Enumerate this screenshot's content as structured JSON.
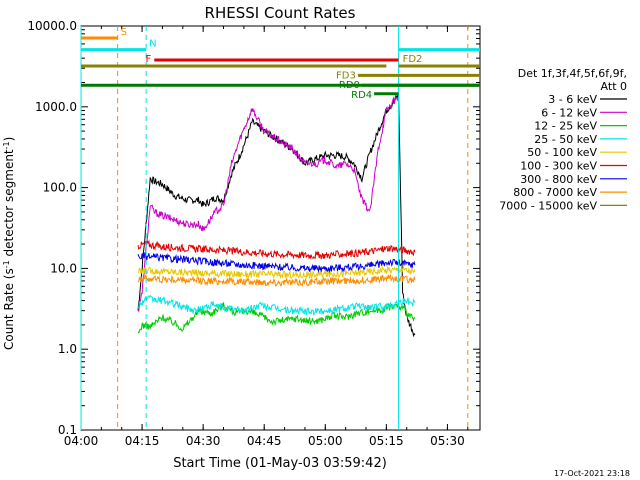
{
  "chart_data": {
    "type": "line",
    "title": "RHESSI Count Rates",
    "xlabel": "Start Time (01-May-03 03:59:42)",
    "ylabel_main": "Count Rate (s",
    "ylabel_sup1": "-1",
    "ylabel_mid": " detector segment",
    "ylabel_sup2": "-1",
    "ylabel_end": ")",
    "y_scale": "log",
    "ylim": [
      0.1,
      10000
    ],
    "xlim": [
      "04:00",
      "05:38"
    ],
    "x_ticks": [
      "04:00",
      "04:15",
      "04:30",
      "04:45",
      "05:00",
      "05:15",
      "05:30"
    ],
    "y_ticks": [
      "0.1",
      "1.0",
      "10.0",
      "100.0",
      "1000.0",
      "10000.0"
    ],
    "legend_header": [
      "Det 1f,3f,4f,5f,6f,9f,",
      "Att 0"
    ],
    "legend_placement": "right",
    "footer_date": "17-Oct-2021 23:18",
    "series": [
      {
        "name": "3 - 6 keV",
        "color": "#000000",
        "x": [
          "04:14",
          "04:15",
          "04:17",
          "04:18",
          "04:20",
          "04:23",
          "04:26",
          "04:29",
          "04:30",
          "04:33",
          "04:35",
          "04:37",
          "04:39",
          "04:41",
          "04:42",
          "04:45",
          "04:48",
          "04:52",
          "04:55",
          "04:58",
          "05:00",
          "05:03",
          "05:05",
          "05:07",
          "05:09",
          "05:11",
          "05:13",
          "05:15",
          "05:17",
          "05:18",
          "05:19",
          "05:20",
          "05:22"
        ],
        "values": [
          3,
          10,
          130,
          120,
          110,
          80,
          70,
          70,
          60,
          75,
          70,
          150,
          250,
          450,
          650,
          500,
          400,
          300,
          200,
          230,
          250,
          250,
          240,
          200,
          130,
          270,
          500,
          900,
          1200,
          1400,
          5,
          2.5,
          1.5
        ]
      },
      {
        "name": "6 - 12 keV",
        "color": "#cc00cc",
        "x": [
          "04:14",
          "04:15",
          "04:17",
          "04:18",
          "04:20",
          "04:23",
          "04:26",
          "04:29",
          "04:30",
          "04:33",
          "04:35",
          "04:37",
          "04:39",
          "04:41",
          "04:42",
          "04:45",
          "04:48",
          "04:52",
          "04:55",
          "04:58",
          "05:00",
          "05:03",
          "05:05",
          "05:07",
          "05:09",
          "05:11",
          "05:13",
          "05:15",
          "05:17",
          "05:18"
        ],
        "values": [
          3,
          5,
          60,
          50,
          45,
          40,
          35,
          35,
          30,
          50,
          60,
          200,
          400,
          700,
          950,
          500,
          400,
          300,
          200,
          200,
          220,
          180,
          200,
          170,
          70,
          50,
          300,
          900,
          1200,
          1300
        ]
      },
      {
        "name": "12 - 25 keV",
        "color": "#00cc00",
        "x": [
          "04:14",
          "04:15",
          "04:17",
          "04:20",
          "04:23",
          "04:25",
          "04:29",
          "04:32",
          "04:35",
          "04:38",
          "04:41",
          "04:44",
          "04:47",
          "04:50",
          "04:53",
          "04:56",
          "04:59",
          "05:02",
          "05:05",
          "05:08",
          "05:11",
          "05:14",
          "05:17",
          "05:19",
          "05:20",
          "05:21",
          "05:22"
        ],
        "values": [
          1.5,
          2,
          1.9,
          2.5,
          2.1,
          1.8,
          3,
          2.8,
          3.5,
          2.8,
          3.0,
          2.6,
          2.2,
          2.3,
          2.4,
          2.2,
          2.3,
          2.6,
          2.5,
          2.8,
          3.0,
          3.1,
          3.5,
          3.2,
          2.8,
          2.5,
          2.4
        ]
      },
      {
        "name": "25 - 50 keV",
        "color": "#00e5e5",
        "x": [
          "04:14",
          "04:16",
          "04:20",
          "04:24",
          "04:28",
          "04:32",
          "04:36",
          "04:40",
          "04:44",
          "04:48",
          "04:52",
          "04:56",
          "05:00",
          "05:04",
          "05:08",
          "05:12",
          "05:16",
          "05:19",
          "05:22"
        ],
        "values": [
          3.5,
          4.2,
          4.0,
          3.5,
          3.0,
          3.5,
          3.2,
          3.0,
          3.5,
          3.2,
          3.0,
          2.9,
          3.0,
          3.2,
          3.4,
          3.3,
          3.5,
          4.0,
          3.8
        ]
      },
      {
        "name": "50 - 100 keV",
        "color": "#e6c800",
        "x": [
          "04:14",
          "04:16",
          "04:20",
          "04:24",
          "04:28",
          "04:32",
          "04:36",
          "04:40",
          "04:44",
          "04:48",
          "04:52",
          "04:56",
          "05:00",
          "05:04",
          "05:08",
          "05:12",
          "05:16",
          "05:19",
          "05:22"
        ],
        "values": [
          9,
          9.5,
          9.2,
          9.0,
          8.8,
          8.7,
          8.6,
          8.5,
          8.5,
          8.4,
          8.3,
          8.3,
          8.5,
          8.6,
          8.9,
          9.2,
          9.6,
          9.8,
          9.0
        ]
      },
      {
        "name": "100 - 300 keV",
        "color": "#e60000",
        "x": [
          "04:14",
          "04:16",
          "04:20",
          "04:24",
          "04:28",
          "04:32",
          "04:36",
          "04:40",
          "04:44",
          "04:48",
          "04:52",
          "04:56",
          "05:00",
          "05:04",
          "05:08",
          "05:12",
          "05:16",
          "05:19",
          "05:22"
        ],
        "values": [
          19,
          20,
          18.5,
          18,
          17.5,
          17,
          16.5,
          16,
          15.5,
          15,
          14.8,
          14.5,
          14.5,
          15,
          15.5,
          16.5,
          18,
          17,
          16
        ]
      },
      {
        "name": "300 - 800 keV",
        "color": "#0000e6",
        "x": [
          "04:14",
          "04:16",
          "04:20",
          "04:24",
          "04:28",
          "04:32",
          "04:36",
          "04:40",
          "04:44",
          "04:48",
          "04:52",
          "04:56",
          "05:00",
          "05:04",
          "05:08",
          "05:12",
          "05:16",
          "05:19",
          "05:22"
        ],
        "values": [
          14,
          14,
          13.5,
          13,
          12.5,
          12,
          11.5,
          11,
          10.8,
          10.5,
          10.2,
          10,
          10,
          10.3,
          10.5,
          11,
          12,
          11.5,
          11
        ]
      },
      {
        "name": "800 - 7000 keV",
        "color": "#ff8c00",
        "x": [
          "04:14",
          "04:16",
          "04:20",
          "04:24",
          "04:28",
          "04:32",
          "04:36",
          "04:40",
          "04:44",
          "04:48",
          "04:52",
          "04:56",
          "05:00",
          "05:04",
          "05:08",
          "05:12",
          "05:16",
          "05:19",
          "05:22"
        ],
        "values": [
          7.5,
          7.5,
          7.3,
          7.2,
          7.0,
          7.0,
          6.9,
          6.8,
          6.8,
          6.7,
          6.7,
          6.8,
          6.9,
          7.0,
          7.1,
          7.3,
          7.6,
          7.4,
          7.2
        ]
      },
      {
        "name": "7000 - 15000 keV",
        "color": "#8b8000",
        "x": [],
        "values": []
      }
    ],
    "annotations": {
      "vlines": [
        {
          "x": "04:00",
          "color": "#00e5e5",
          "style": "solid"
        },
        {
          "x": "04:09",
          "color": "#ff8c00",
          "style": "dashed"
        },
        {
          "x": "04:16",
          "color": "#00e5e5",
          "style": "dashed"
        },
        {
          "x": "05:18",
          "color": "#00e5e5",
          "style": "solid"
        },
        {
          "x": "05:35",
          "color": "#ff8c00",
          "style": "dashed"
        }
      ],
      "hbars": [
        {
          "label": "S",
          "x0": "04:00",
          "x1": "04:09",
          "y": 7100,
          "color": "#ff8c00"
        },
        {
          "label": "N",
          "x0": "04:00",
          "x1": "04:16",
          "y": 5100,
          "color": "#00e5e5"
        },
        {
          "label": "",
          "x0": "05:18",
          "x1": "05:38",
          "y": 5100,
          "color": "#00e5e5"
        },
        {
          "label": "F",
          "x0": "04:18",
          "x1": "05:18",
          "y": 3800,
          "color": "#e60000"
        },
        {
          "label": "",
          "x0": "04:00",
          "x1": "05:15",
          "y": 3200,
          "color": "#8b8000"
        },
        {
          "label": "FD2",
          "x0": "05:18",
          "x1": "05:38",
          "y": 3200,
          "color": "#8b8000"
        },
        {
          "label": "FD3",
          "x0": "05:08",
          "x1": "05:38",
          "y": 2450,
          "color": "#8b8000"
        },
        {
          "label": "",
          "x0": "04:00",
          "x1": "05:38",
          "y": 1850,
          "color": "#007a00"
        },
        {
          "label": "RD0",
          "x0": "05:09",
          "x1": "05:38",
          "y": 1850,
          "color": "#007a00"
        },
        {
          "label": "RD4",
          "x0": "05:12",
          "x1": "05:18",
          "y": 1450,
          "color": "#007a00"
        }
      ]
    }
  }
}
